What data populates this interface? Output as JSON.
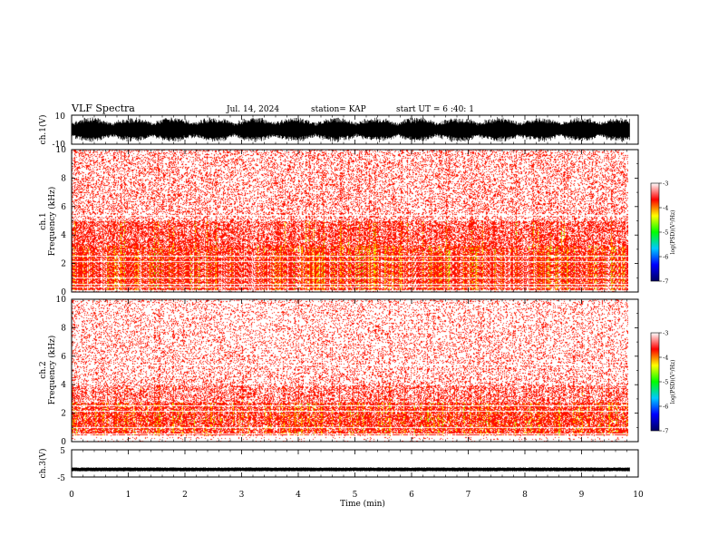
{
  "header": {
    "title": "VLF Spectra",
    "date": "Jul. 14, 2024",
    "station": "station= KAP",
    "start": "start UT = 6 :40: 1"
  },
  "chart_data": [
    {
      "type": "line",
      "name": "ch1-waveform",
      "ylabel": "ch.1(V)",
      "ylim": [
        -10,
        10
      ],
      "yticklabels": [
        "10",
        "-10"
      ],
      "x_range_min": [
        0,
        9.85
      ],
      "description_level": "dense oscillating waveform, roughly between -8 and 8 V",
      "color": "#000000"
    },
    {
      "type": "heatmap",
      "name": "ch1-spectrogram",
      "ylabel": "ch.1\nFrequency (kHz)",
      "ylabel_lines": [
        "ch.1",
        "Frequency (kHz)"
      ],
      "ylim": [
        0,
        10
      ],
      "yticks": [
        "0",
        "2",
        "4",
        "6",
        "8",
        "10"
      ],
      "x_range_min": [
        0,
        9.85
      ],
      "colorbar": {
        "label": "log(PSD)(V²/Hz)",
        "range": [
          -7,
          -3
        ],
        "ticks": [
          "-3",
          "-4",
          "-5",
          "-6",
          "-7"
        ],
        "colors": [
          "#000060",
          "#0000ff",
          "#00c8ff",
          "#00ff00",
          "#ffff00",
          "#ff0000",
          "#ffffff"
        ]
      }
    },
    {
      "type": "heatmap",
      "name": "ch2-spectrogram",
      "ylabel": "ch.2\nFrequency (kHz)",
      "ylabel_lines": [
        "ch.2",
        "Frequency (kHz)"
      ],
      "ylim": [
        0,
        10
      ],
      "yticks": [
        "0",
        "2",
        "4",
        "6",
        "8",
        "10"
      ],
      "x_range_min": [
        0,
        9.85
      ],
      "colorbar": {
        "label": "log(PSD)(V²/Hz)",
        "range": [
          -7,
          -3
        ],
        "ticks": [
          "-3",
          "-4",
          "-5",
          "-6",
          "-7"
        ],
        "colors": [
          "#000060",
          "#0000ff",
          "#00c8ff",
          "#00ff00",
          "#ffff00",
          "#ff0000",
          "#ffffff"
        ]
      }
    },
    {
      "type": "line",
      "name": "ch3-waveform",
      "ylabel": "ch.3(V)",
      "ylim": [
        -5,
        5
      ],
      "yticklabels": [
        "5",
        "-5"
      ],
      "x_range_min": [
        0,
        9.85
      ],
      "level_approx": -2.2,
      "color": "#000000"
    }
  ],
  "xaxis": {
    "label": "Time (min)",
    "ticks": [
      "0",
      "1",
      "2",
      "3",
      "4",
      "5",
      "6",
      "7",
      "8",
      "9",
      "10"
    ],
    "xlim": [
      0,
      10
    ]
  }
}
